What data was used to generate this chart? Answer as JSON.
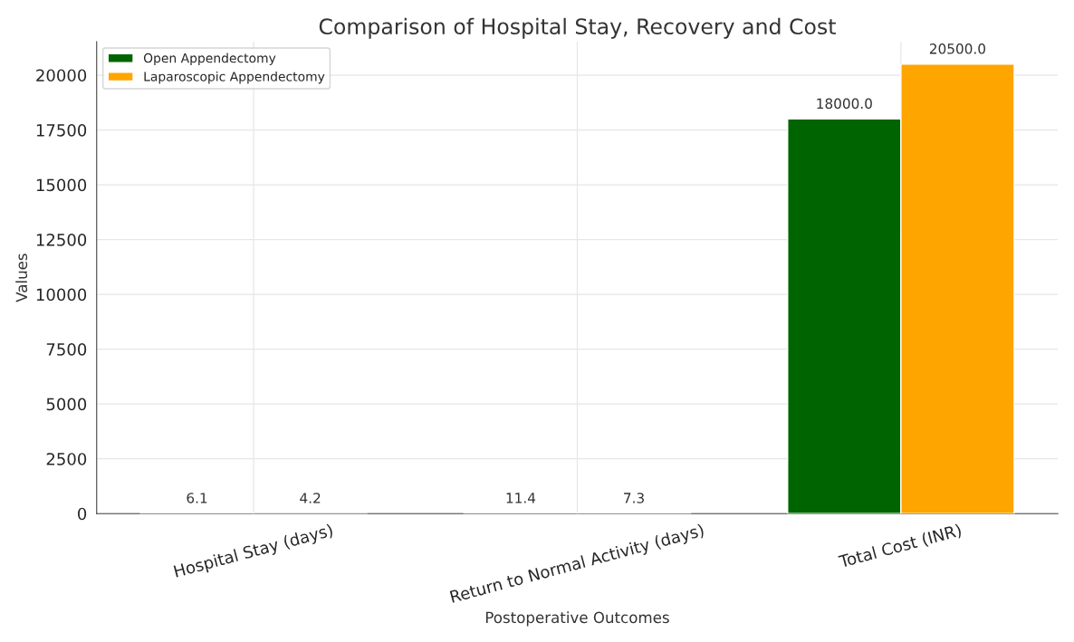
{
  "chart_data": {
    "type": "bar",
    "title": "Comparison of Hospital Stay, Recovery and Cost",
    "xlabel": "Postoperative Outcomes",
    "ylabel": "Values",
    "categories": [
      "Hospital Stay (days)",
      "Return to Normal Activity (days)",
      "Total Cost (INR)"
    ],
    "series": [
      {
        "name": "Open Appendectomy",
        "color": "#006400",
        "values": [
          6.1,
          11.4,
          18000.0
        ],
        "value_labels": [
          "6.1",
          "11.4",
          "18000.0"
        ]
      },
      {
        "name": "Laparoscopic Appendectomy",
        "color": "#ffa500",
        "values": [
          4.2,
          7.3,
          20500.0
        ],
        "value_labels": [
          "4.2",
          "7.3",
          "20500.0"
        ]
      }
    ],
    "ylim": [
      0,
      21525
    ],
    "yticks": [
      0,
      2500,
      5000,
      7500,
      10000,
      12500,
      15000,
      17500,
      20000
    ],
    "grid": true,
    "legend": "top left"
  }
}
